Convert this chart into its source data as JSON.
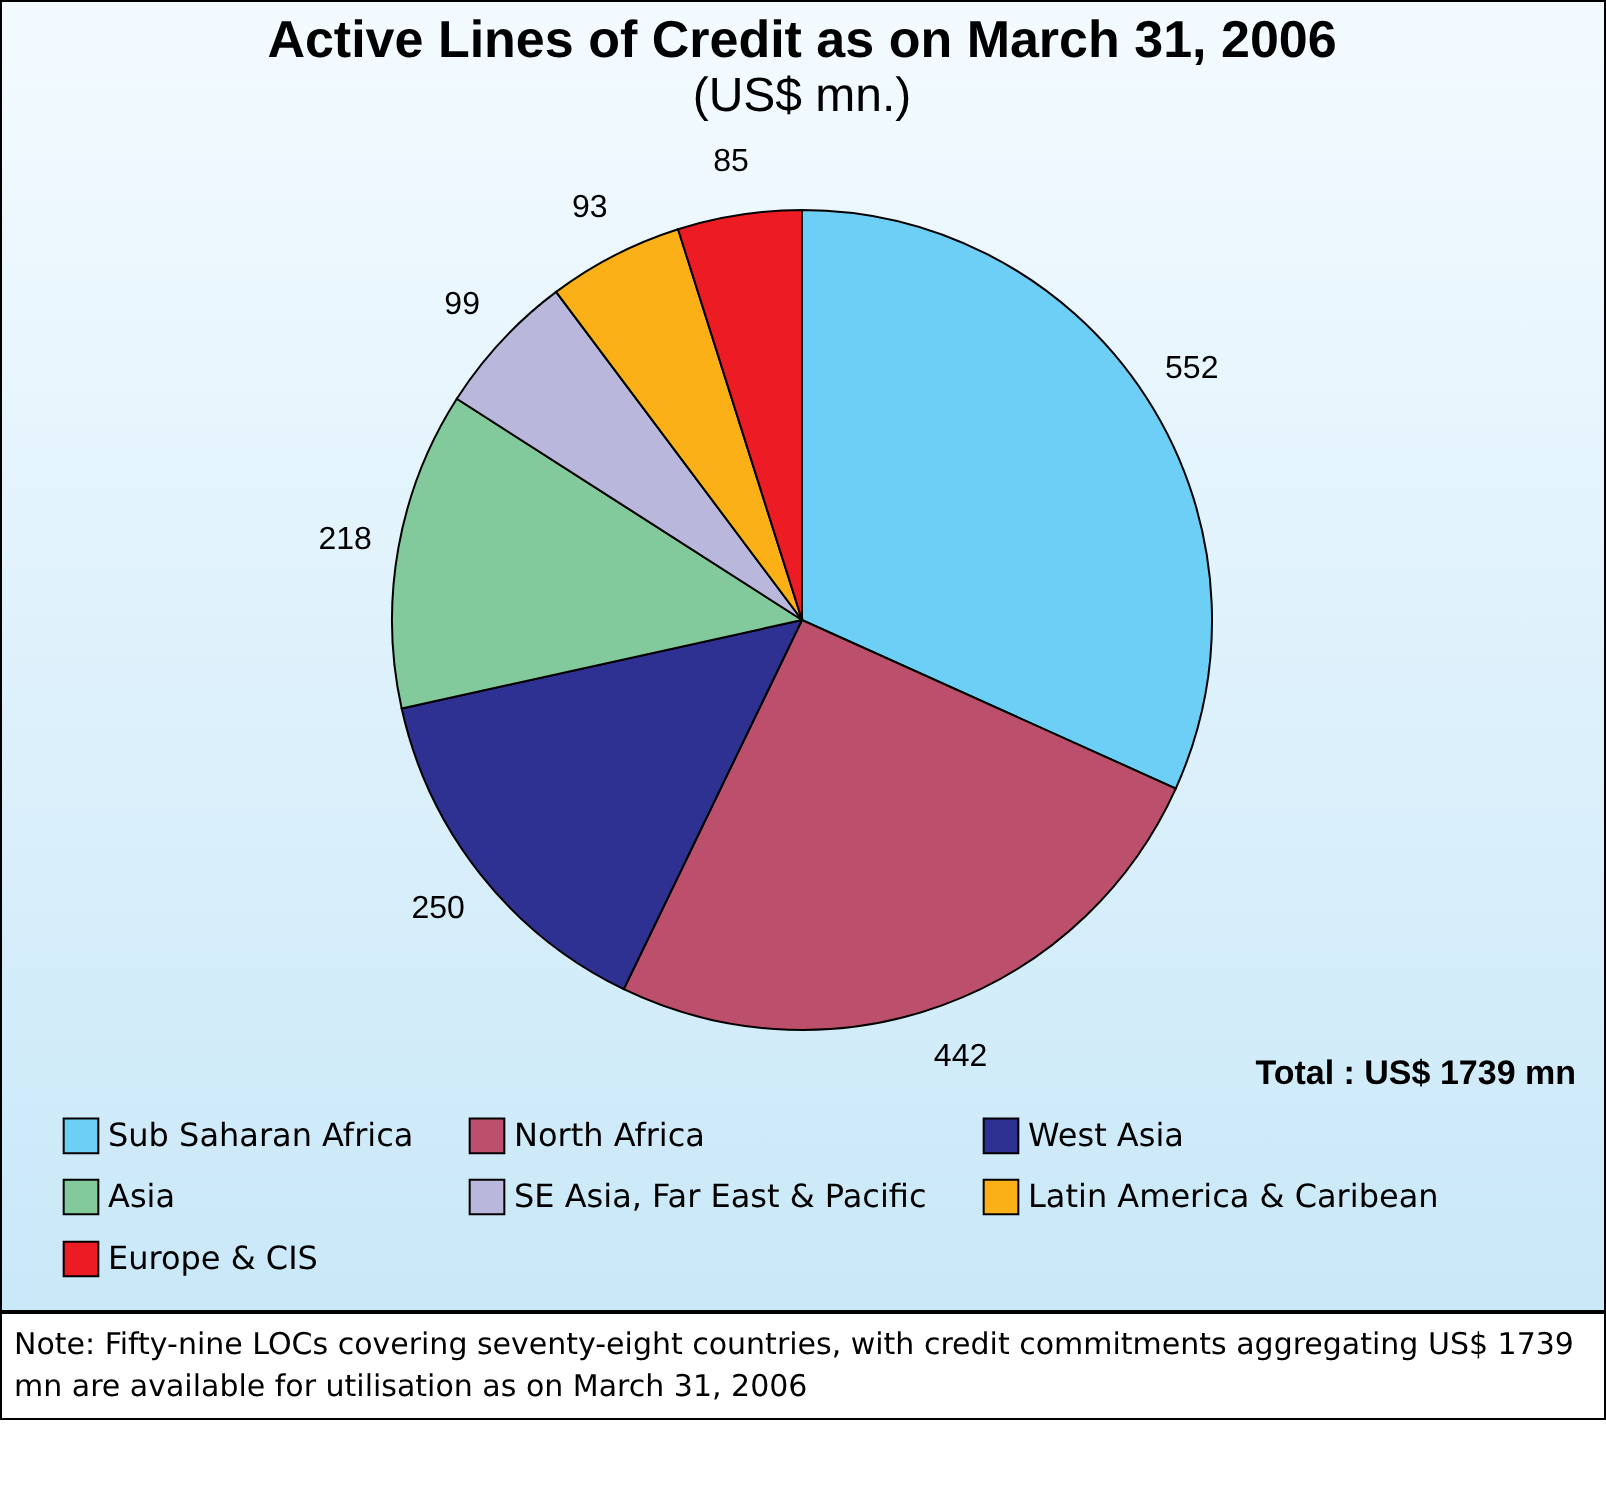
{
  "chart_data": {
    "type": "pie",
    "title": "Active Lines of Credit as on March 31, 2006",
    "subtitle": "(US$ mn.)",
    "categories": [
      "Sub Saharan Africa",
      "North Africa",
      "West Asia",
      "Asia",
      "SE Asia, Far East & Pacific",
      "Latin America & Caribean",
      "Europe & CIS"
    ],
    "values": [
      552,
      442,
      250,
      218,
      99,
      93,
      85
    ],
    "colors": [
      "#6dcff6",
      "#bc4f6b",
      "#2e3192",
      "#82ca9c",
      "#b9b7dc",
      "#fbb017",
      "#ed1c24"
    ],
    "data_labels": true,
    "legend": "bottom",
    "annotations": [
      "Total : US$ 1739 mn",
      "Note: Fifty-nine LOCs covering seventy-eight countries, with credit commitments aggregating US$ 1739 mn are available for utilisation as on March 31, 2006"
    ]
  }
}
